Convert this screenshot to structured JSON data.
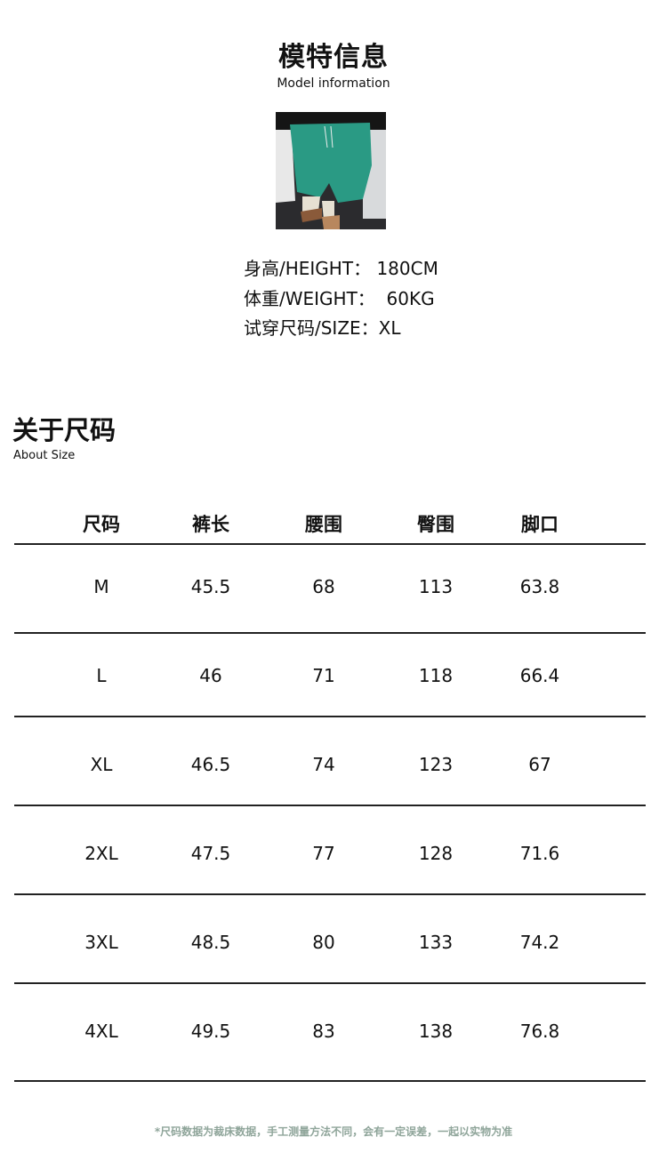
{
  "model": {
    "title": "模特信息",
    "subtitle": "Model information",
    "height_label": "身高/HEIGHT：",
    "height_value": "180CM",
    "weight_label": "体重/WEIGHT：",
    "weight_value": "60KG",
    "size_label": "试穿尺码/SIZE：",
    "size_value": "XL"
  },
  "size_section": {
    "title": "关于尺码",
    "subtitle": "About Size"
  },
  "table": {
    "headers": [
      "尺码",
      "裤长",
      "腰围",
      "臀围",
      "脚口"
    ],
    "rows": [
      [
        "M",
        "45.5",
        "68",
        "113",
        "63.8"
      ],
      [
        "L",
        "46",
        "71",
        "118",
        "66.4"
      ],
      [
        "XL",
        "46.5",
        "74",
        "123",
        "67"
      ],
      [
        "2XL",
        "47.5",
        "77",
        "128",
        "71.6"
      ],
      [
        "3XL",
        "48.5",
        "80",
        "133",
        "74.2"
      ],
      [
        "4XL",
        "49.5",
        "83",
        "138",
        "76.8"
      ]
    ]
  },
  "note": "*尺码数据为裁床数据，手工测量方法不同，会有一定误差，一起以实物为准",
  "colors": {
    "note": "#8fa59a",
    "shorts": "#2a9a84"
  }
}
